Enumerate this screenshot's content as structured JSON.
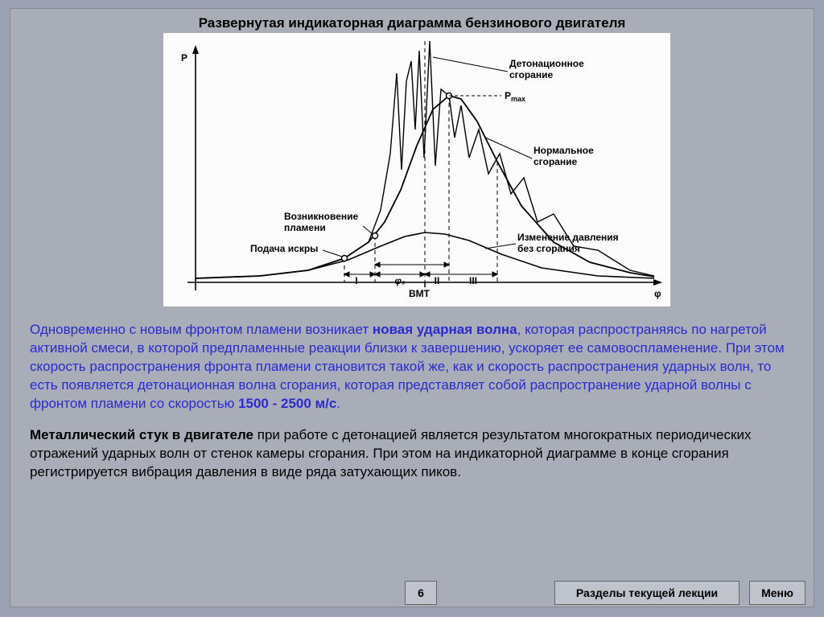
{
  "slide": {
    "title": "Развернутая индикаторная диаграмма бензинового двигателя",
    "page_number": "6",
    "sections_button": "Разделы текущей лекции",
    "menu_button": "Меню"
  },
  "paragraphs": {
    "p1_pre": "Одновременно с новым фронтом пламени возникает ",
    "p1_bold1": "новая ударная волна",
    "p1_mid": ", которая распространяясь по нагретой активной смеси, в которой предпламенные реакции близки к завершению, ускоряет ее самовоспламенение. При этом скорость распространения фронта пламени становится такой же, как и скорость распространения ударных волн, то есть появляется детонационная волна сгорания, которая представляет собой распространение ударной волны с фронтом пламени со скоростью ",
    "p1_bold2": "1500 - 2500 м/с",
    "p1_end": ".",
    "p2_bold": "Металлический стук в двигателе",
    "p2_rest": " при работе с детонацией является результатом многократных периодических отражений ударных волн от стенок камеры сгорания. При этом на индикаторной диаграмме в конце сгорания регистрируется вибрация давления в виде ряда затухающих пиков."
  },
  "diagram": {
    "type": "line",
    "background_color": "#fcfcfc",
    "axis_color": "#000000",
    "line_width": 1.6,
    "dashed_line_width": 1,
    "y_axis_label": "P",
    "x_axis_label": "φ",
    "x_tick_label": "ВМТ",
    "annotation_pmax": "P",
    "annotation_pmax_sub": "max",
    "phase_labels": {
      "I": "I",
      "II": "II",
      "III": "III",
      "phi3": "φ₃"
    },
    "callouts": {
      "detonation": {
        "line1": "Детонационное",
        "line2": "сгорание"
      },
      "normal": {
        "line1": "Нормальное",
        "line2": "сгорание"
      },
      "flame": {
        "line1": "Возникновение",
        "line2": "пламени"
      },
      "spark": {
        "line1": "Подача искры"
      },
      "nocomb": {
        "line1": "Изменение давления",
        "line2": "без сгорания"
      }
    },
    "curves": {
      "no_combustion": {
        "color": "#000000",
        "points": [
          [
            40,
            305
          ],
          [
            120,
            302
          ],
          [
            180,
            295
          ],
          [
            230,
            282
          ],
          [
            270,
            265
          ],
          [
            300,
            253
          ],
          [
            325,
            248
          ],
          [
            350,
            250
          ],
          [
            380,
            258
          ],
          [
            420,
            275
          ],
          [
            470,
            292
          ],
          [
            540,
            302
          ],
          [
            610,
            305
          ]
        ]
      },
      "normal_combustion": {
        "color": "#000000",
        "points": [
          [
            40,
            305
          ],
          [
            120,
            302
          ],
          [
            180,
            295
          ],
          [
            225,
            280
          ],
          [
            255,
            260
          ],
          [
            275,
            235
          ],
          [
            295,
            195
          ],
          [
            315,
            140
          ],
          [
            335,
            95
          ],
          [
            355,
            78
          ],
          [
            370,
            82
          ],
          [
            390,
            110
          ],
          [
            415,
            160
          ],
          [
            445,
            215
          ],
          [
            485,
            260
          ],
          [
            530,
            285
          ],
          [
            580,
            298
          ],
          [
            610,
            303
          ]
        ]
      },
      "detonation": {
        "color": "#000000",
        "points": [
          [
            255,
            260
          ],
          [
            270,
            220
          ],
          [
            282,
            150
          ],
          [
            290,
            50
          ],
          [
            296,
            170
          ],
          [
            302,
            60
          ],
          [
            308,
            35
          ],
          [
            313,
            120
          ],
          [
            318,
            22
          ],
          [
            324,
            155
          ],
          [
            331,
            10
          ],
          [
            338,
            165
          ],
          [
            345,
            70
          ],
          [
            355,
            78
          ],
          [
            362,
            130
          ],
          [
            370,
            90
          ],
          [
            380,
            155
          ],
          [
            392,
            120
          ],
          [
            404,
            175
          ],
          [
            418,
            150
          ],
          [
            432,
            200
          ],
          [
            448,
            180
          ],
          [
            465,
            235
          ],
          [
            485,
            225
          ],
          [
            510,
            265
          ],
          [
            540,
            270
          ],
          [
            580,
            295
          ],
          [
            610,
            302
          ]
        ]
      }
    },
    "markers": {
      "spark_point": {
        "x": 225,
        "y": 280
      },
      "flame_point": {
        "x": 263,
        "y": 252
      },
      "pmax_point": {
        "x": 355,
        "y": 78
      }
    },
    "vlines_x": [
      225,
      263,
      325,
      355,
      415
    ],
    "baseline_y": 310,
    "xlim": [
      20,
      620
    ],
    "ylim": [
      0,
      340
    ]
  },
  "colors": {
    "slide_bg": "#a8adb8",
    "outer_bg": "#9ba2b3",
    "blue_text": "#2a2ad0",
    "black_text": "#000000",
    "button_bg": "#bfc3cb",
    "button_border": "#666666"
  },
  "typography": {
    "title_fontsize": 17,
    "body_fontsize": 17,
    "diagram_label_fontsize": 12,
    "footer_fontsize": 14
  }
}
